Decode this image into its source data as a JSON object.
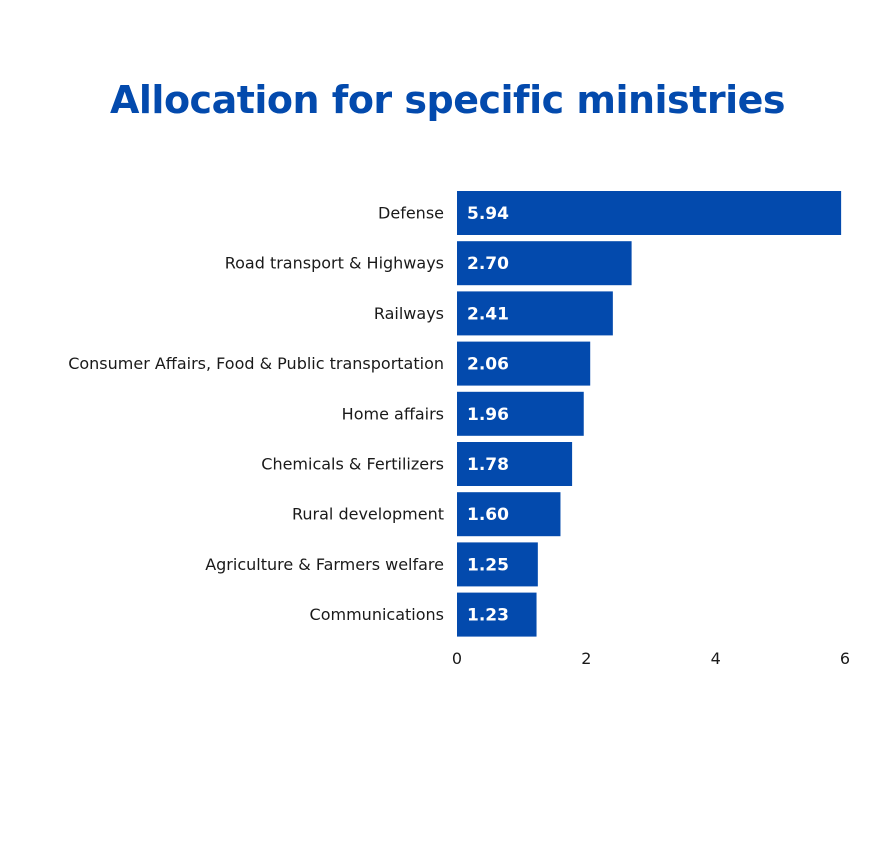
{
  "colors": {
    "bar": "#034AAD",
    "title": "#034AAD"
  },
  "chart_data": {
    "type": "bar",
    "orientation": "horizontal",
    "title": "Allocation for specific ministries",
    "categories": [
      "Defense",
      "Road transport & Highways",
      "Railways",
      "Consumer Affairs, Food & Public transportation",
      "Home affairs",
      "Chemicals & Fertilizers",
      "Rural development",
      "Agriculture & Farmers welfare",
      "Communications"
    ],
    "values": [
      5.94,
      2.7,
      2.41,
      2.06,
      1.96,
      1.78,
      1.6,
      1.25,
      1.23
    ],
    "value_labels": [
      "5.94",
      "2.70",
      "2.41",
      "2.06",
      "1.96",
      "1.78",
      "1.60",
      "1.25",
      "1.23"
    ],
    "xlim": [
      0,
      6
    ],
    "xticks": [
      0,
      2,
      4,
      6
    ],
    "grid": false,
    "legend": "none"
  }
}
